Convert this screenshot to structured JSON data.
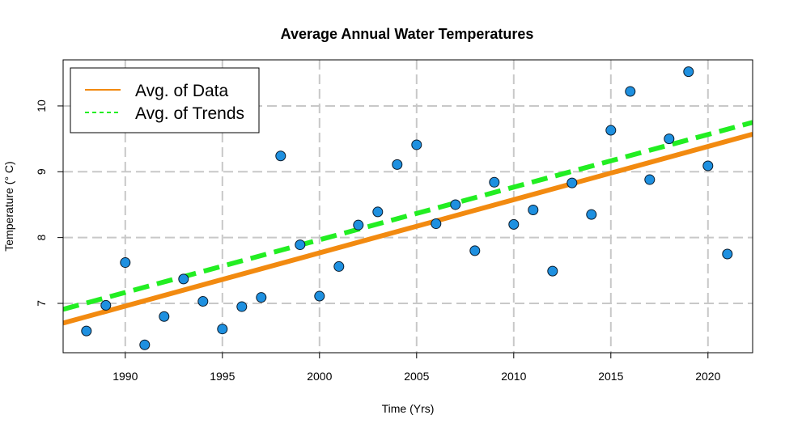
{
  "chart_data": {
    "type": "scatter",
    "title": "Average Annual Water Temperatures",
    "xlabel": "Time (Yrs)",
    "ylabel": "Temperature (° C)",
    "xlim": [
      1986.8,
      2022.3
    ],
    "ylim": [
      6.25,
      10.7
    ],
    "x_ticks": [
      1990,
      1995,
      2000,
      2005,
      2010,
      2015,
      2020
    ],
    "y_ticks": [
      7,
      8,
      9,
      10
    ],
    "grid": true,
    "legend_position": "top-left",
    "colors": {
      "points": "#1e90e0",
      "avg_of_data_line": "#f28a10",
      "avg_of_trends_line": "#22ee22",
      "grid": "#c8c8c8"
    },
    "series": [
      {
        "type": "scatter",
        "x": [
          1988,
          1989,
          1990,
          1991,
          1992,
          1993,
          1994,
          1995,
          1996,
          1997,
          1998,
          1999,
          2000,
          2001,
          2002,
          2003,
          2004,
          2005,
          2006,
          2007,
          2008,
          2009,
          2010,
          2011,
          2012,
          2013,
          2014,
          2015,
          2016,
          2017,
          2018,
          2019,
          2020,
          2021
        ],
        "y": [
          6.58,
          6.97,
          7.62,
          6.37,
          6.8,
          7.37,
          7.03,
          6.61,
          6.95,
          7.09,
          9.24,
          7.89,
          7.11,
          7.56,
          8.19,
          8.39,
          9.11,
          9.41,
          8.21,
          8.5,
          7.8,
          8.84,
          8.2,
          8.42,
          7.49,
          8.83,
          8.35,
          9.63,
          10.22,
          8.88,
          9.5,
          10.52,
          9.09,
          7.75
        ]
      },
      {
        "name": "Avg. of Data",
        "type": "line",
        "style": "solid",
        "x": [
          1986.8,
          2022.3
        ],
        "y": [
          6.7,
          9.57
        ]
      },
      {
        "name": "Avg. of Trends",
        "type": "line",
        "style": "dashed",
        "x": [
          1986.8,
          2022.3
        ],
        "y": [
          6.91,
          9.75
        ]
      }
    ]
  }
}
